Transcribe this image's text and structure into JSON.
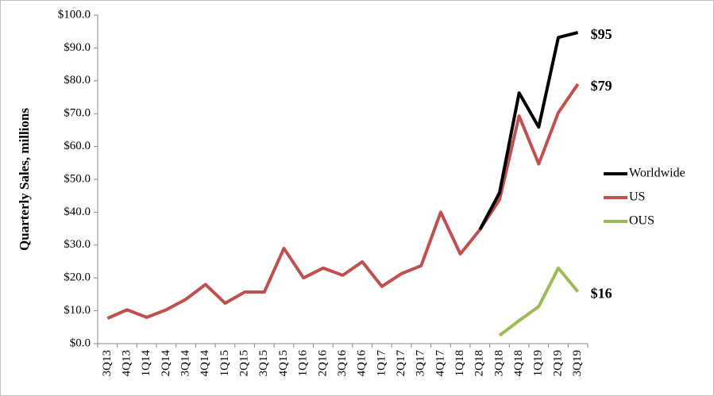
{
  "chart_data": {
    "type": "line",
    "ylabel": "Quarterly Sales, millions",
    "categories": [
      "3Q13",
      "4Q13",
      "1Q14",
      "2Q14",
      "3Q14",
      "4Q14",
      "1Q15",
      "2Q15",
      "3Q15",
      "4Q15",
      "1Q16",
      "2Q16",
      "3Q16",
      "4Q16",
      "1Q17",
      "2Q17",
      "3Q17",
      "4Q17",
      "1Q18",
      "2Q18",
      "3Q18",
      "4Q18",
      "1Q19",
      "2Q19",
      "3Q19"
    ],
    "series": [
      {
        "name": "Worldwide",
        "color": "#000000",
        "values": [
          null,
          null,
          null,
          null,
          null,
          null,
          null,
          null,
          null,
          null,
          null,
          null,
          null,
          null,
          null,
          null,
          null,
          null,
          null,
          34.7,
          45.9,
          76.3,
          65.9,
          93.2,
          94.7
        ],
        "value_labels": [
          null,
          null,
          null,
          null,
          null,
          null,
          null,
          null,
          null,
          null,
          null,
          null,
          null,
          null,
          null,
          null,
          null,
          null,
          null,
          null,
          null,
          null,
          null,
          null,
          "$95"
        ]
      },
      {
        "name": "US",
        "color": "#c0504d",
        "values": [
          7.7,
          10.3,
          8.0,
          10.3,
          13.5,
          18.0,
          12.3,
          15.7,
          15.7,
          29.0,
          20.0,
          23.0,
          20.8,
          24.9,
          17.4,
          21.3,
          23.7,
          40.0,
          27.3,
          34.7,
          43.8,
          69.3,
          54.7,
          70.3,
          79.0
        ],
        "value_labels": [
          null,
          null,
          null,
          null,
          null,
          null,
          null,
          null,
          null,
          null,
          null,
          null,
          null,
          null,
          null,
          null,
          null,
          null,
          null,
          null,
          null,
          null,
          null,
          null,
          "$79"
        ]
      },
      {
        "name": "OUS",
        "color": "#9bbb59",
        "values": [
          null,
          null,
          null,
          null,
          null,
          null,
          null,
          null,
          null,
          null,
          null,
          null,
          null,
          null,
          null,
          null,
          null,
          null,
          null,
          null,
          2.5,
          7.0,
          11.3,
          23.0,
          15.8
        ],
        "value_labels": [
          null,
          null,
          null,
          null,
          null,
          null,
          null,
          null,
          null,
          null,
          null,
          null,
          null,
          null,
          null,
          null,
          null,
          null,
          null,
          null,
          null,
          null,
          null,
          null,
          "$16"
        ]
      }
    ],
    "ylim": [
      0,
      100
    ],
    "yticks": [
      {
        "value": 0,
        "label": "$0.0"
      },
      {
        "value": 10,
        "label": "$10.0"
      },
      {
        "value": 20,
        "label": "$20.0"
      },
      {
        "value": 30,
        "label": "$30.0"
      },
      {
        "value": 40,
        "label": "$40.0"
      },
      {
        "value": 50,
        "label": "$50.0"
      },
      {
        "value": 60,
        "label": "$60.0"
      },
      {
        "value": 70,
        "label": "$70.0"
      },
      {
        "value": 80,
        "label": "$80.0"
      },
      {
        "value": 90,
        "label": "$90.0"
      },
      {
        "value": 100,
        "label": "$100.0"
      }
    ],
    "grid": false,
    "legend": "right"
  }
}
